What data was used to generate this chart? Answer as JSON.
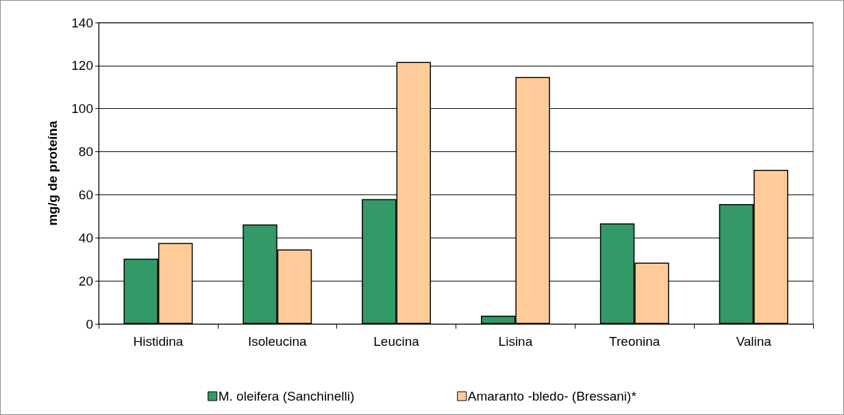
{
  "chart_data": {
    "type": "bar",
    "ylabel": "mg/g de proteína",
    "categories": [
      "Histidina",
      "Isoleucina",
      "Leucina",
      "Lisina",
      "Treonina",
      "Valina"
    ],
    "series": [
      {
        "name": "M. oleifera (Sanchinelli)",
        "color": "#339966",
        "values": [
          30.3,
          46.2,
          58.0,
          3.8,
          46.7,
          55.7
        ]
      },
      {
        "name": "Amaranto -bledo- (Bressani)*",
        "color": "#ffcc99",
        "values": [
          37.6,
          34.6,
          121.7,
          114.7,
          28.5,
          71.6
        ]
      }
    ],
    "ylim": [
      0,
      140
    ],
    "yticks": [
      0,
      20,
      40,
      60,
      80,
      100,
      120,
      140
    ],
    "grid": "y",
    "legend": "bottom"
  }
}
